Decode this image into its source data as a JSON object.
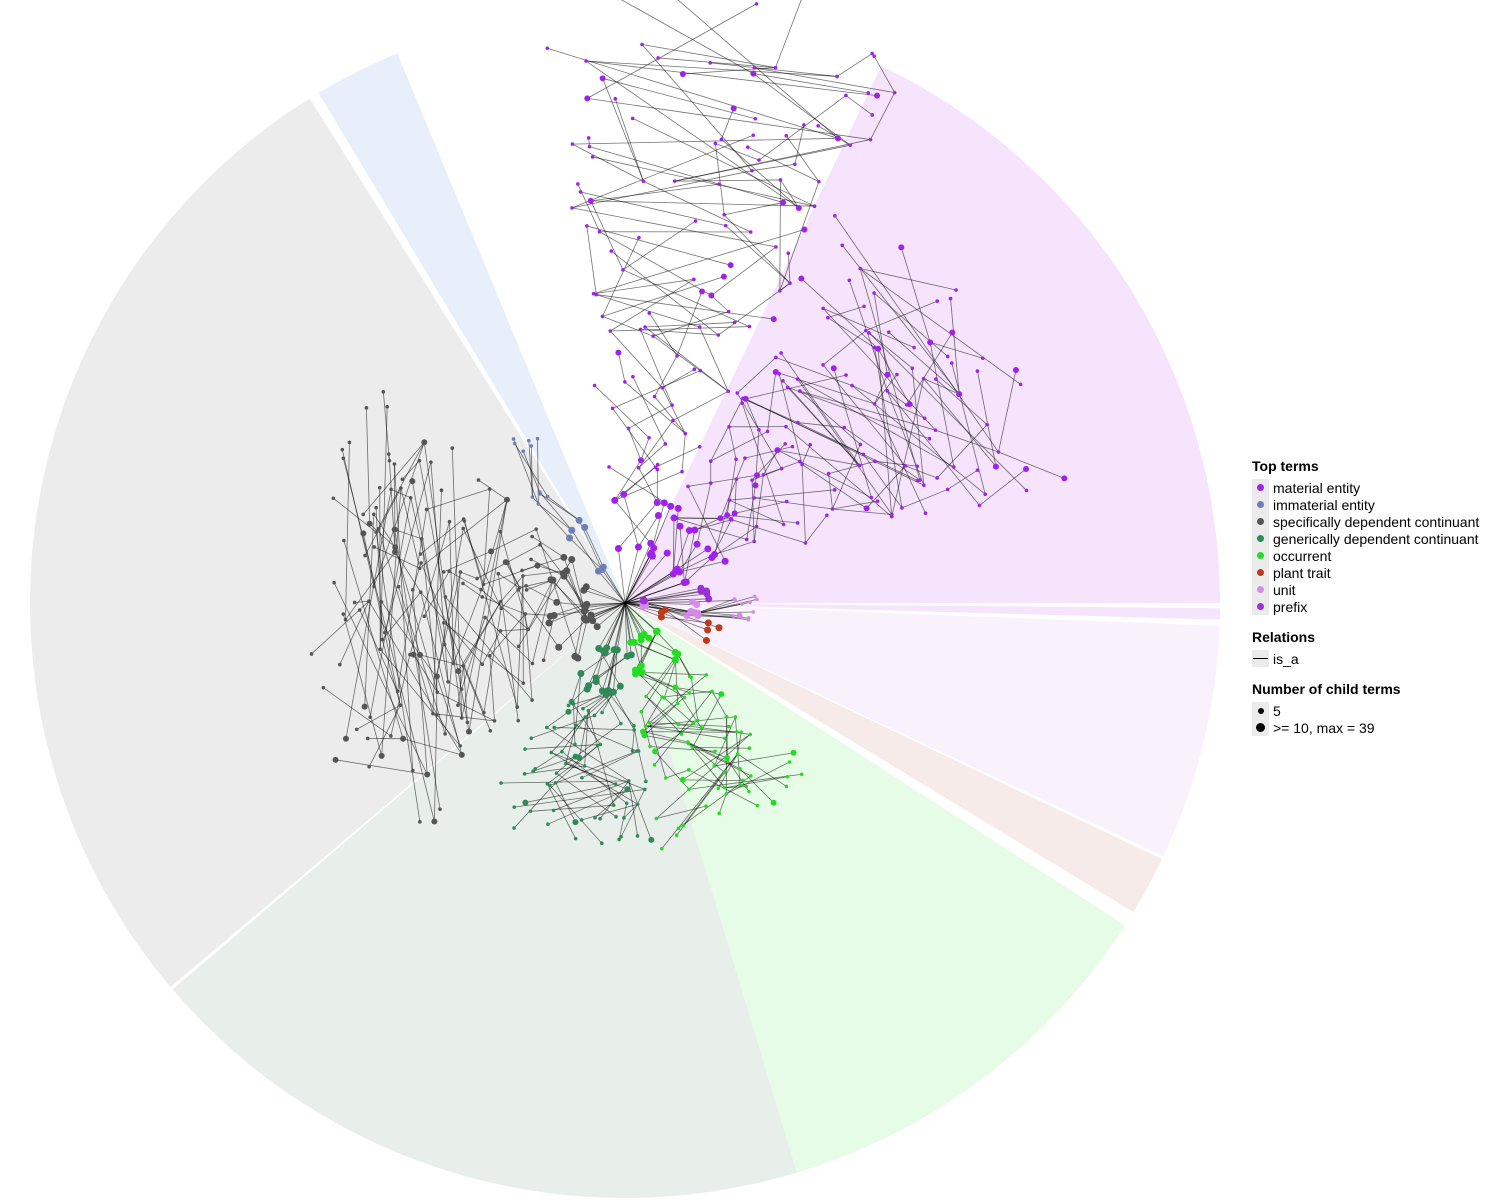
{
  "legend": {
    "top_terms": {
      "title": "Top terms",
      "items": [
        {
          "label": "material entity",
          "color": "#a020f0"
        },
        {
          "label": "immaterial entity",
          "color": "#6e7fb8"
        },
        {
          "label": "specifically dependent continuant",
          "color": "#555555"
        },
        {
          "label": "generically dependent continuant",
          "color": "#2e8b57"
        },
        {
          "label": "occurrent",
          "color": "#22dd22"
        },
        {
          "label": "plant trait",
          "color": "#c0391c"
        },
        {
          "label": "unit",
          "color": "#d68ae8"
        },
        {
          "label": "prefix",
          "color": "#9b30d9"
        }
      ]
    },
    "relations": {
      "title": "Relations",
      "items": [
        {
          "label": "is_a",
          "color": "#000000"
        }
      ]
    },
    "child_terms": {
      "title": "Number of child terms",
      "items": [
        {
          "label": "5"
        },
        {
          "label": ">= 10, max = 39"
        }
      ]
    }
  },
  "sectors": [
    {
      "term": "material entity",
      "color": "#f5e4fb",
      "start_deg": -64.5,
      "end_deg": 0
    },
    {
      "term": "prefix",
      "color": "#f5e4fb",
      "start_deg": 0.5,
      "end_deg": 1.6
    },
    {
      "term": "unit",
      "color": "#f9f2fc",
      "start_deg": 2.2,
      "end_deg": 25.2
    },
    {
      "term": "plant trait",
      "color": "#f6ebe8",
      "start_deg": 25.5,
      "end_deg": 31.3
    },
    {
      "term": "occurrent",
      "color": "#e6fce6",
      "start_deg": 32.8,
      "end_deg": 73.2
    },
    {
      "term": "generically dependent continuant",
      "color": "#e8efeb",
      "start_deg": 73.2,
      "end_deg": 139.5
    },
    {
      "term": "specifically dependent continuant",
      "color": "#ececec",
      "start_deg": 139.8,
      "end_deg": 238.0
    },
    {
      "term": "immaterial entity",
      "color": "#e9eefb",
      "start_deg": 239.0,
      "end_deg": 247.5
    }
  ]
}
